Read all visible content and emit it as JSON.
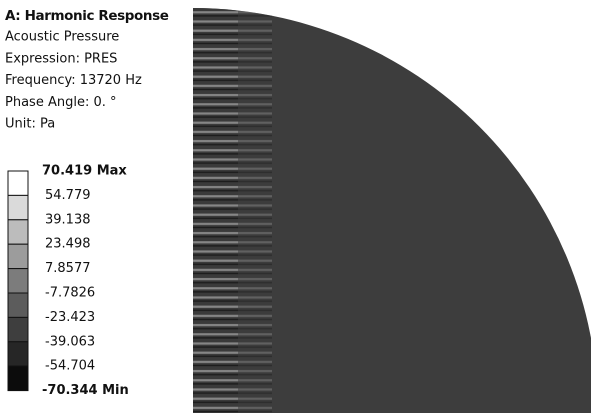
{
  "header": {
    "title": "A: Harmonic Response",
    "lines": [
      "Acoustic Pressure",
      "Expression: PRES",
      "Frequency: 13720 Hz",
      "Phase Angle: 0. °",
      "Unit: Pa"
    ]
  },
  "legend": {
    "labels": [
      "70.419 Max",
      "54.779",
      "39.138",
      "23.498",
      "7.8577",
      "-7.7826",
      "-23.423",
      "-39.063",
      "-54.704",
      "-70.344 Min"
    ],
    "colors": [
      "#ffffff",
      "#dadada",
      "#bcbcbc",
      "#9c9c9c",
      "#7c7c7c",
      "#5c5c5c",
      "#3e3e3e",
      "#262626",
      "#0c0c0c"
    ]
  }
}
